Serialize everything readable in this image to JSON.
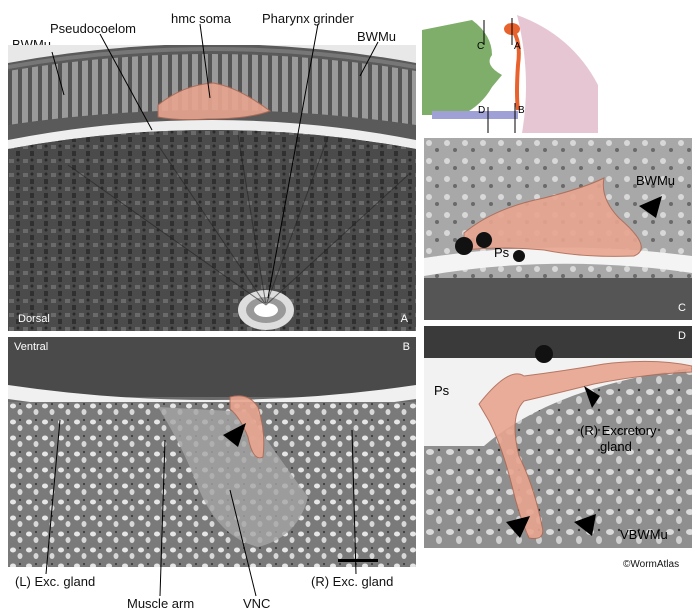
{
  "panels": {
    "A": {
      "letter": "A",
      "side_label": "Dorsal"
    },
    "B": {
      "letter": "B",
      "side_label": "Ventral"
    },
    "C": {
      "letter": "C",
      "ps_label": "Ps",
      "bwmu_label": "BWMu"
    },
    "D": {
      "letter": "D",
      "ps_label": "Ps",
      "exc_label_1": "(R) Excretory",
      "exc_label_2": "gland",
      "vbwmu_label": "VBWMu"
    }
  },
  "labels": {
    "bwmu_left": "BWMu",
    "pseudocoelom": "Pseudocoelom",
    "hmc_soma": "hmc soma",
    "pharynx_grinder": "Pharynx grinder",
    "bwmu_right": "BWMu",
    "l_exc_gland": "(L) Exc. gland",
    "muscle_arm": "Muscle arm",
    "vnc": "VNC",
    "r_exc_gland": "(R) Exc. gland"
  },
  "schematic": {
    "A": "A",
    "B": "B",
    "C": "C",
    "D": "D"
  },
  "credit": "©WormAtlas",
  "colors": {
    "hmc": "#e8a58f",
    "em_dark": "#3a3a3a",
    "em_mid": "#8a8a8a",
    "em_light": "#d8d8d8",
    "schem_green": "#7fae6a",
    "schem_pink": "#e7c6d3"
  }
}
